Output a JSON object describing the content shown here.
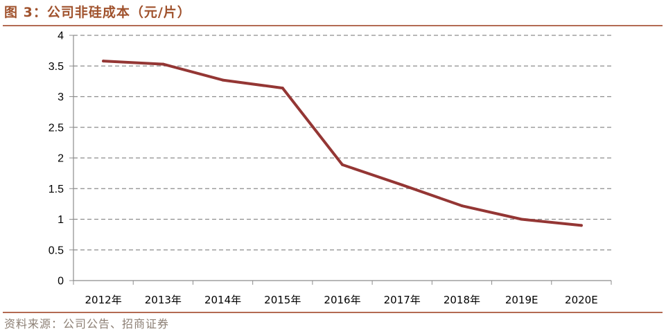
{
  "page": {
    "title": "图 3：公司非硅成本（元/片）",
    "source": "资料来源：公司公告、招商证券"
  },
  "colors": {
    "line": "#943634",
    "grid": "#8c8c8c",
    "axis": "#8c8c8c",
    "title": "#a0522d",
    "rule": "#b36a52"
  },
  "chart_data": {
    "type": "line",
    "title": "公司非硅成本（元/片）",
    "xlabel": "",
    "ylabel": "",
    "categories": [
      "2012年",
      "2013年",
      "2014年",
      "2015年",
      "2016年",
      "2017年",
      "2018年",
      "2019E",
      "2020E"
    ],
    "series": [
      {
        "values": [
          3.58,
          3.53,
          3.27,
          3.14,
          1.89,
          1.56,
          1.22,
          1.0,
          0.9
        ]
      }
    ],
    "ylim": [
      0,
      4
    ],
    "yticks": [
      "0",
      "0.5",
      "1",
      "1.5",
      "2",
      "2.5",
      "3",
      "3.5",
      "4"
    ],
    "grid": true,
    "legend": "none"
  }
}
